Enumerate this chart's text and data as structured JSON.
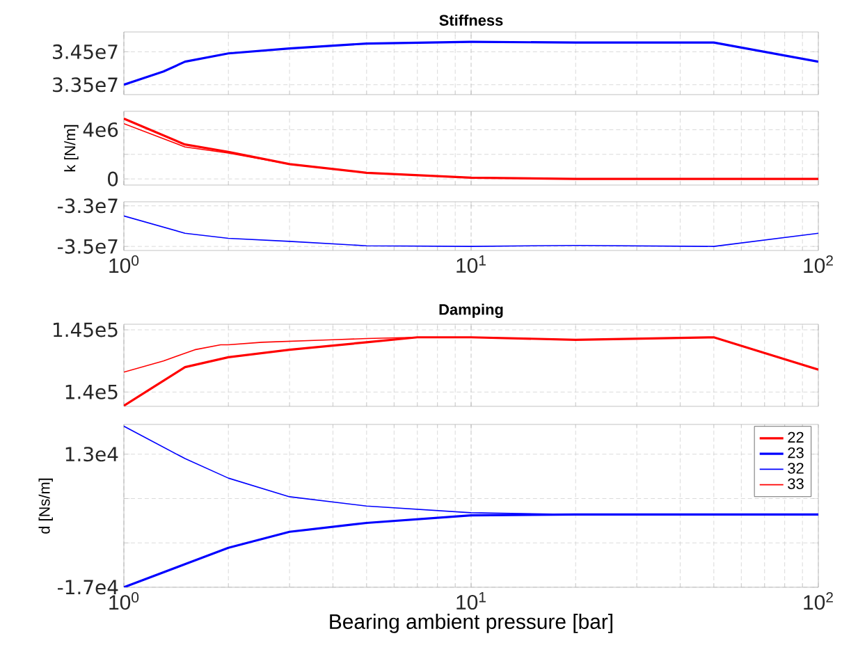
{
  "chart_data": [
    {
      "type": "line",
      "title": "Stiffness",
      "log": "x",
      "grid": true,
      "tick_labels": "y",
      "xlim": [
        1,
        100
      ],
      "xticks": [
        1,
        10,
        100
      ],
      "ylim": [
        33200000,
        35100000
      ],
      "yticks": [
        {
          "value": 33500000,
          "label": "3.35e7"
        },
        {
          "value": 34500000,
          "label": "3.45e7"
        }
      ],
      "series": [
        {
          "color": "#0000ff",
          "x": [
            1,
            1.3,
            1.5,
            2,
            3,
            5,
            10,
            20,
            50,
            100
          ],
          "values": [
            33500000,
            33900000,
            34200000,
            34450000,
            34600000,
            34750000,
            34800000,
            34780000,
            34780000,
            34200000
          ]
        }
      ]
    },
    {
      "type": "line",
      "ylabel": "k [N/m]",
      "log": "x",
      "grid": true,
      "tick_labels": "y",
      "xlim": [
        1,
        100
      ],
      "xticks": [
        1,
        10,
        100
      ],
      "ylim": [
        -500000,
        5500000
      ],
      "yticks": [
        0,
        {
          "value": 2000000,
          "label": null
        },
        {
          "value": 4000000,
          "label": "4e6"
        }
      ],
      "series": [
        {
          "color": "#ff0000",
          "x": [
            1,
            1.5,
            2,
            3,
            5,
            10,
            20,
            50,
            100
          ],
          "values": [
            4900000,
            2800000,
            2200000,
            1200000,
            500000,
            100000,
            0,
            0,
            0
          ]
        },
        {
          "color": "#ff0000",
          "x": [
            1,
            1.5,
            2,
            3,
            5,
            10,
            20,
            50,
            100
          ],
          "values": [
            4500000,
            2600000,
            2100000,
            1200000,
            500000,
            100000,
            0,
            0,
            0
          ]
        }
      ]
    },
    {
      "type": "line",
      "log": "x",
      "grid": true,
      "xlim": [
        1,
        100
      ],
      "ylim": [
        -35200000,
        -32800000
      ],
      "xticks": [
        {
          "value": 1,
          "label": "10$^{0}$"
        },
        {
          "value": 10,
          "label": "10$^{1}$"
        },
        {
          "value": 100,
          "label": "10$^{2}$"
        }
      ],
      "yticks": [
        {
          "value": -35000000,
          "label": "-3.5e7"
        },
        {
          "value": -33000000,
          "label": "-3.3e7"
        }
      ],
      "series": [
        {
          "color": "#0000ff",
          "x": [
            1,
            1.5,
            2,
            3,
            5,
            10,
            20,
            50,
            100
          ],
          "values": [
            -33500000,
            -34350000,
            -34600000,
            -34750000,
            -34970000,
            -35000000,
            -34950000,
            -35000000,
            -34350000
          ]
        }
      ]
    },
    {
      "type": "line",
      "title": "Damping",
      "log": "x",
      "grid": true,
      "tick_labels": "y",
      "xlim": [
        1,
        100
      ],
      "xticks": [
        1,
        10,
        100
      ],
      "ylim": [
        138850,
        145450
      ],
      "yticks": [
        {
          "value": 140000,
          "label": "1.4e5"
        },
        {
          "value": 145000,
          "label": "1.45e5"
        }
      ],
      "series": [
        {
          "color": "#ff0000",
          "x": [
            1,
            1.2,
            1.5,
            2,
            3,
            5,
            7,
            10,
            20,
            50,
            100
          ],
          "values": [
            138900,
            140300,
            142000,
            142800,
            143400,
            144000,
            144400,
            144400,
            144200,
            144400,
            141800
          ]
        },
        {
          "color": "#ff0000",
          "x": [
            1,
            1.3,
            1.6,
            1.9,
            2,
            2.5,
            4,
            5,
            7,
            10,
            20,
            50,
            100
          ],
          "values": [
            141600,
            142500,
            143400,
            143800,
            143800,
            144000,
            144200,
            144300,
            144400,
            144400,
            144200,
            144400,
            141800
          ]
        }
      ]
    },
    {
      "type": "line",
      "ylabel": "d [Ns/m]",
      "xlabel": "Bearing ambient pressure [bar]",
      "log": "x",
      "grid": true,
      "legend": "top right",
      "xlim": [
        1,
        100
      ],
      "ylim": [
        -17000,
        19700
      ],
      "xticks": [
        {
          "value": 1,
          "label": "10$^{0}$"
        },
        {
          "value": 10,
          "label": "10$^{1}$"
        },
        {
          "value": 100,
          "label": "10$^{2}$"
        }
      ],
      "yticks": [
        {
          "value": -17000,
          "label": "-1.7e4"
        },
        {
          "value": -7000,
          "label": null
        },
        {
          "value": 3000,
          "label": null
        },
        {
          "value": 13000,
          "label": "1.3e4"
        }
      ],
      "series": [
        {
          "name": "22",
          "color": "#ff0000"
        },
        {
          "name": "23",
          "color": "#0000ff",
          "x": [
            1,
            1.5,
            2,
            3,
            5,
            10,
            20,
            50,
            100
          ],
          "values": [
            -17000,
            -11800,
            -8100,
            -4500,
            -2500,
            -800,
            -600,
            -600,
            -600
          ]
        },
        {
          "name": "32",
          "color": "#0000ff",
          "x": [
            1,
            1.5,
            2,
            3,
            5,
            10,
            20,
            50,
            100
          ],
          "values": [
            19300,
            12000,
            7600,
            3400,
            1300,
            -200,
            -600,
            -600,
            -600
          ]
        },
        {
          "name": "33",
          "color": "#ff0000"
        }
      ]
    }
  ]
}
